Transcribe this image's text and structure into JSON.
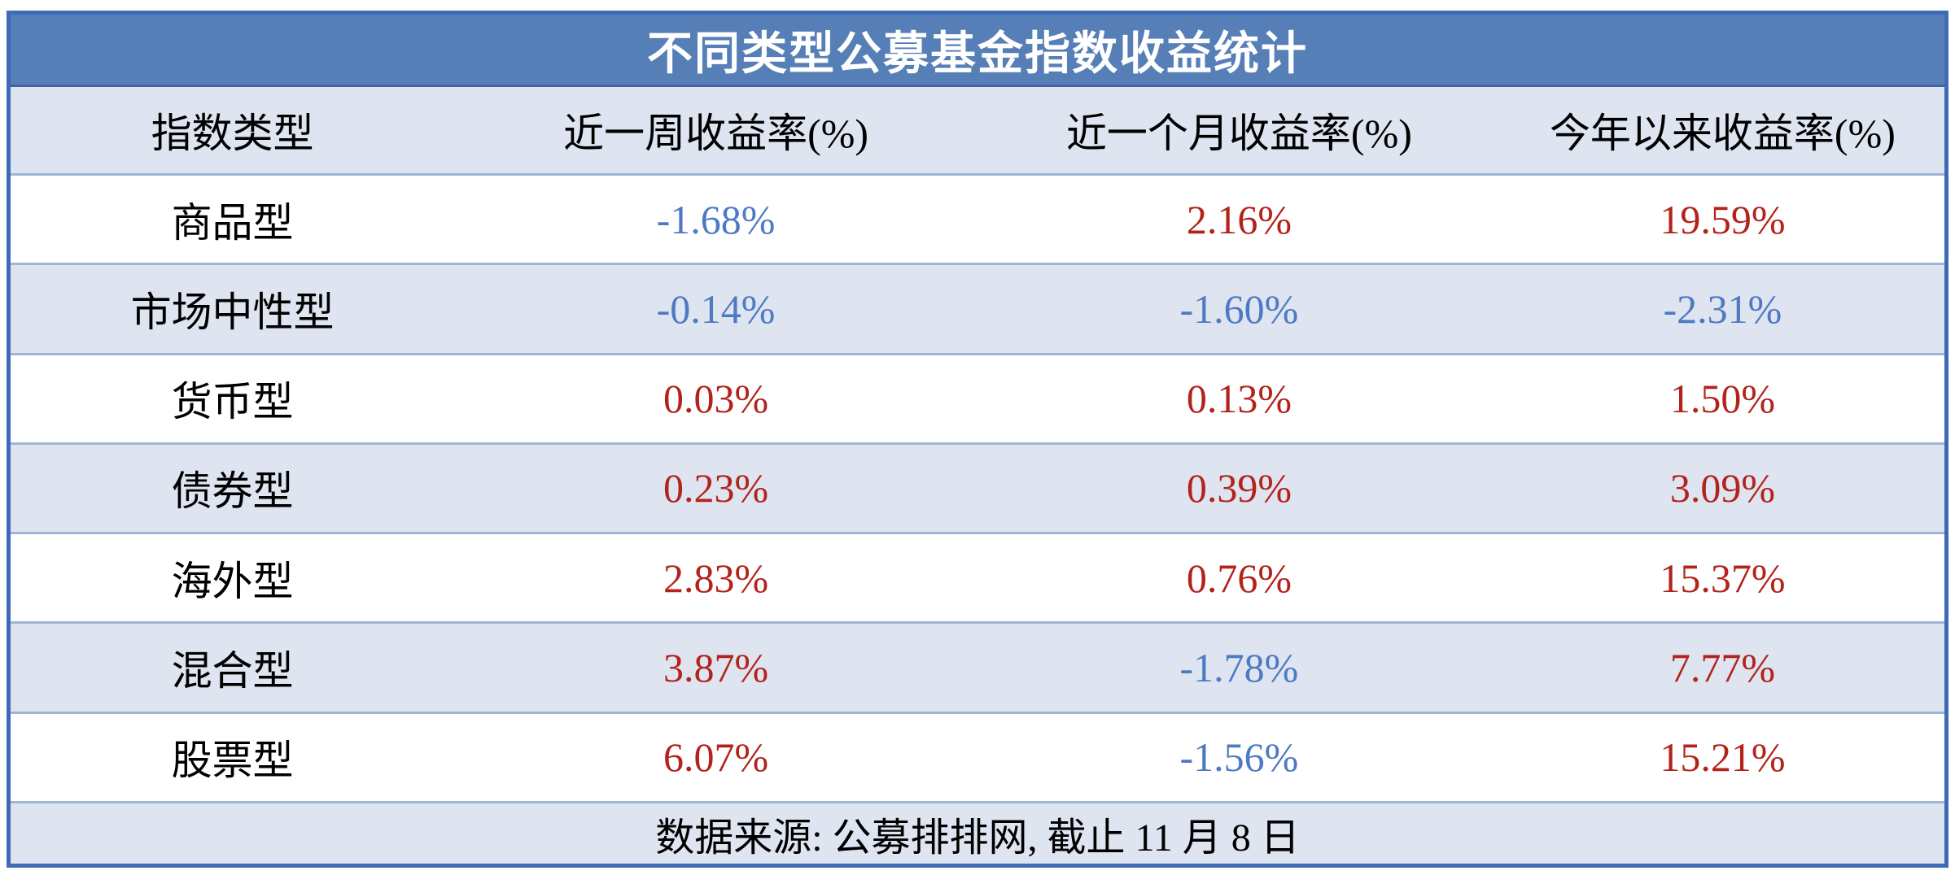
{
  "chart_data": {
    "type": "table",
    "title": "不同类型公募基金指数收益统计",
    "columns": [
      "指数类型",
      "近一周收益率(%)",
      "近一个月收益率(%)",
      "今年以来收益率(%)"
    ],
    "rows": [
      {
        "index_type": "商品型",
        "week": "-1.68%",
        "month": "2.16%",
        "ytd": "19.59%"
      },
      {
        "index_type": "市场中性型",
        "week": "-0.14%",
        "month": "-1.60%",
        "ytd": "-2.31%"
      },
      {
        "index_type": "货币型",
        "week": "0.03%",
        "month": "0.13%",
        "ytd": "1.50%"
      },
      {
        "index_type": "债券型",
        "week": "0.23%",
        "month": "0.39%",
        "ytd": "3.09%"
      },
      {
        "index_type": "海外型",
        "week": "2.83%",
        "month": "0.76%",
        "ytd": "15.37%"
      },
      {
        "index_type": "混合型",
        "week": "3.87%",
        "month": "-1.78%",
        "ytd": "7.77%"
      },
      {
        "index_type": "股票型",
        "week": "6.07%",
        "month": "-1.56%",
        "ytd": "15.21%"
      }
    ],
    "footnote": "数据来源: 公募排排网, 截止 11 月 8 日",
    "value_color_rule": "negative values blue, positive values red",
    "layout": "alternating row bands, title bar on top, source note at bottom"
  },
  "colors": {
    "title_bg": "#577FB7",
    "title_text": "#FFFFFF",
    "band_bg": "#DEE4F0",
    "row_bg": "#FFFFFF",
    "outer_border": "#3F6BB6",
    "divider": "#9FB5D8",
    "positive_value": "#B3231C",
    "negative_value": "#4E7AC4",
    "label_text": "#000000"
  }
}
